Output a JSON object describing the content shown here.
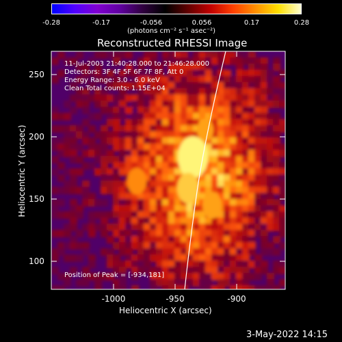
{
  "colorbar": {
    "colors": [
      "#0000ff",
      "#5000ff",
      "#8000d0",
      "#6000a0",
      "#300040",
      "#000000",
      "#600000",
      "#c00000",
      "#ff4000",
      "#ff9000",
      "#ffe000",
      "#ffffd0"
    ],
    "tick_labels": [
      "-0.28",
      "-0.17",
      "-0.056",
      "0.056",
      "0.17",
      "0.28"
    ],
    "units_label": "(photons cm⁻² s⁻¹ asec⁻²)"
  },
  "title": "Reconstructed RHESSI Image",
  "annotation": {
    "line1": "11-Jul-2003 21:40:28.000 to 21:46:28.000",
    "line2": "Detectors: 3F 4F 5F 6F 7F 8F, Att 0",
    "line3": "Energy Range: 3.0 - 6.0 keV",
    "line4": "Clean    Total counts: 1.15E+04",
    "peak": "Position of Peak = [-934,181]"
  },
  "axes": {
    "xlabel": "Heliocentric X (arcsec)",
    "ylabel": "Heliocentric Y (arcsec)",
    "xticks": [
      "-1000",
      "-950",
      "-900"
    ],
    "yticks": [
      "100",
      "150",
      "200",
      "250"
    ]
  },
  "datestamp": "3-May-2022 14:15",
  "limb_color": "#ffffff"
}
